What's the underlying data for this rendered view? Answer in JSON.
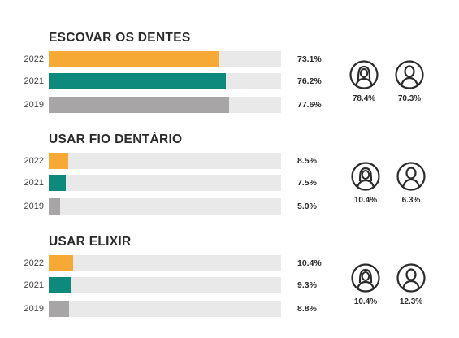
{
  "colors": {
    "2022": "#f6a934",
    "2021": "#0d8a7c",
    "2019": "#a8a5a6",
    "track": "#e9e9e9"
  },
  "chart_data": [
    {
      "type": "bar",
      "title": "ESCOVAR OS DENTES",
      "categories": [
        "2022",
        "2021",
        "2019"
      ],
      "values": [
        73.1,
        76.2,
        77.6
      ],
      "value_labels": [
        "73.1%",
        "76.2%",
        "77.6%"
      ],
      "xlim": [
        0,
        100
      ],
      "icons": [
        {
          "icon": "female-person-icon",
          "label": "78.4%"
        },
        {
          "icon": "male-person-icon",
          "label": "70.3%"
        }
      ]
    },
    {
      "type": "bar",
      "title": "USAR FIO DENTÁRIO",
      "categories": [
        "2022",
        "2021",
        "2019"
      ],
      "values": [
        8.5,
        7.5,
        5.0
      ],
      "value_labels": [
        "8.5%",
        "7.5%",
        "5.0%"
      ],
      "xlim": [
        0,
        100
      ],
      "icons": [
        {
          "icon": "female-person-icon",
          "label": "10.4%"
        },
        {
          "icon": "male-person-icon",
          "label": "6.3%"
        }
      ]
    },
    {
      "type": "bar",
      "title": "USAR ELIXIR",
      "categories": [
        "2022",
        "2021",
        "2019"
      ],
      "values": [
        10.4,
        9.3,
        8.8
      ],
      "value_labels": [
        "10.4%",
        "9.3%",
        "8.8%"
      ],
      "xlim": [
        0,
        100
      ],
      "icons": [
        {
          "icon": "female-person-icon",
          "label": "10.4%"
        },
        {
          "icon": "male-person-icon",
          "label": "12.3%"
        }
      ]
    }
  ]
}
